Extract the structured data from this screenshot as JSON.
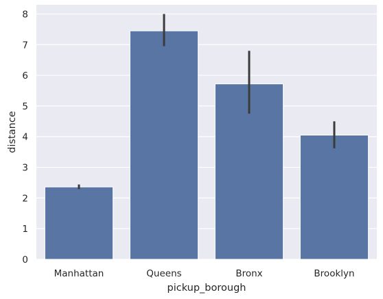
{
  "chart_data": {
    "type": "bar",
    "categories": [
      "Manhattan",
      "Queens",
      "Bronx",
      "Brooklyn"
    ],
    "values": [
      2.36,
      7.45,
      5.72,
      4.05
    ],
    "error_bars": [
      {
        "low": 2.29,
        "high": 2.44
      },
      {
        "low": 6.95,
        "high": 8.0
      },
      {
        "low": 4.75,
        "high": 6.8
      },
      {
        "low": 3.62,
        "high": 4.5
      }
    ],
    "xlabel": "pickup_borough",
    "ylabel": "distance",
    "ylim": [
      0,
      8.3
    ],
    "yticks": [
      "0",
      "1",
      "2",
      "3",
      "4",
      "5",
      "6",
      "7",
      "8"
    ],
    "grid": true,
    "legend": "none",
    "colors": {
      "bar": "#5875a4",
      "plot_background": "#eaeaf2",
      "grid": "#ffffff",
      "error_bar": "#3b3b3b",
      "text": "#262626"
    }
  }
}
